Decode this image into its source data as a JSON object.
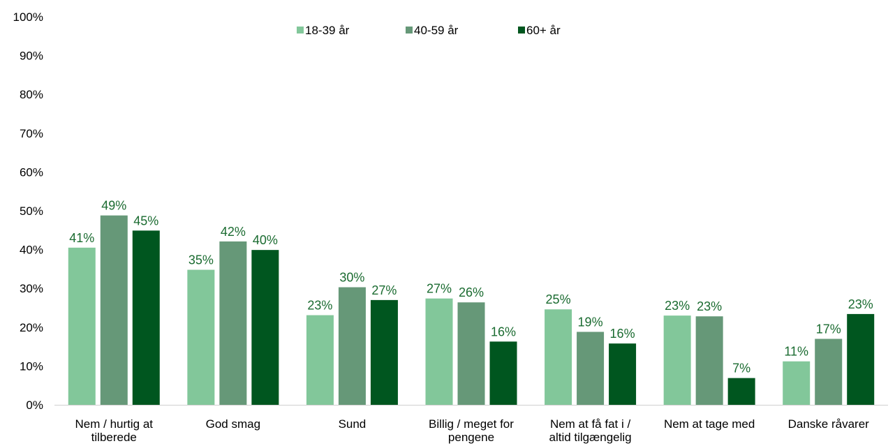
{
  "chart_data": {
    "type": "bar",
    "ylim": [
      0,
      100
    ],
    "ytick_labels": [
      "0%",
      "10%",
      "20%",
      "30%",
      "40%",
      "50%",
      "60%",
      "70%",
      "80%",
      "90%",
      "100%"
    ],
    "categories": [
      [
        "Nem / hurtig at",
        "tilberede"
      ],
      [
        "God smag"
      ],
      [
        "Sund"
      ],
      [
        "Billig / meget for",
        "pengene"
      ],
      [
        "Nem at få fat i /",
        "altid tilgængelig"
      ],
      [
        "Nem at tage med"
      ],
      [
        "Danske råvarer"
      ]
    ],
    "series": [
      {
        "name": "18-39 år",
        "color": "#82c79a",
        "values": [
          40.5,
          34.8,
          23.1,
          27.4,
          24.6,
          23.0,
          11.2
        ],
        "labels": [
          "41%",
          "35%",
          "23%",
          "27%",
          "25%",
          "23%",
          "11%"
        ]
      },
      {
        "name": "40-59 år",
        "color": "#669878",
        "values": [
          48.8,
          42.1,
          30.3,
          26.4,
          18.8,
          22.8,
          17.0
        ],
        "labels": [
          "49%",
          "42%",
          "30%",
          "26%",
          "19%",
          "23%",
          "17%"
        ]
      },
      {
        "name": "60+ år",
        "color": "#00561f",
        "values": [
          44.9,
          39.9,
          27.0,
          16.3,
          15.8,
          6.9,
          23.4
        ],
        "labels": [
          "45%",
          "40%",
          "27%",
          "16%",
          "16%",
          "7%",
          "23%"
        ]
      }
    ],
    "label_color": "#1a6b30",
    "legend": "top-center",
    "grid": false
  }
}
